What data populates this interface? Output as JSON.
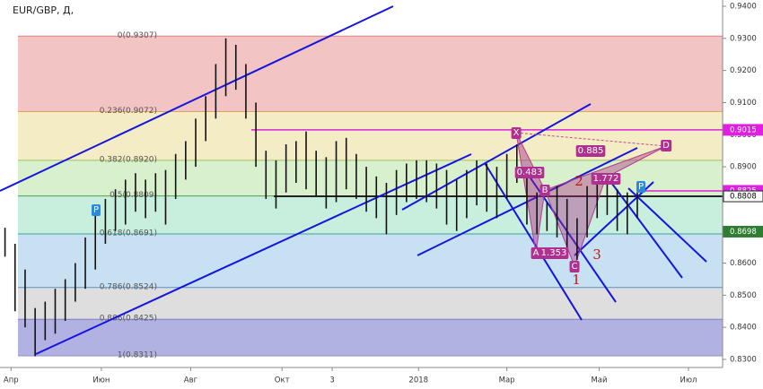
{
  "chart_data": {
    "type": "range-bar",
    "title": "EUR/GBP, Д,",
    "color": "#111111",
    "xlim": [
      0,
      72
    ],
    "xticks": [
      {
        "value": 1.1,
        "label": "Апр"
      },
      {
        "value": 10.1,
        "label": "Июн"
      },
      {
        "value": 19,
        "label": "Авг"
      },
      {
        "value": 28.1,
        "label": "Окт"
      },
      {
        "value": 33.1,
        "label": "3"
      },
      {
        "value": 41.7,
        "label": "2018"
      },
      {
        "value": 50.5,
        "label": "Мар"
      },
      {
        "value": 59.7,
        "label": "Май"
      },
      {
        "value": 68.6,
        "label": "Июл"
      }
    ],
    "ylim": [
      0.83,
      0.94
    ],
    "yticks": [
      {
        "value": 0.83,
        "label": "0.8300"
      },
      {
        "value": 0.84,
        "label": "0.8400"
      },
      {
        "value": 0.85,
        "label": "0.8500"
      },
      {
        "value": 0.86,
        "label": "0.8600"
      },
      {
        "value": 0.87,
        "label": "0.8700"
      },
      {
        "value": 0.88,
        "label": "0.8800"
      },
      {
        "value": 0.89,
        "label": "0.8900"
      },
      {
        "value": 0.9,
        "label": "0.9000"
      },
      {
        "value": 0.91,
        "label": "0.9100"
      },
      {
        "value": 0.92,
        "label": "0.9200"
      },
      {
        "value": 0.93,
        "label": "0.9300"
      },
      {
        "value": 0.94,
        "label": "0.9400"
      }
    ],
    "low": [
      0.862,
      0.845,
      0.84,
      0.831,
      0.836,
      0.838,
      0.842,
      0.848,
      0.852,
      0.858,
      0.866,
      0.87,
      0.872,
      0.876,
      0.874,
      0.876,
      0.872,
      0.88,
      0.886,
      0.89,
      0.898,
      0.905,
      0.912,
      0.914,
      0.905,
      0.89,
      0.88,
      0.877,
      0.882,
      0.885,
      0.883,
      0.881,
      0.877,
      0.879,
      0.883,
      0.88,
      0.876,
      0.874,
      0.869,
      0.875,
      0.879,
      0.88,
      0.879,
      0.877,
      0.872,
      0.87,
      0.874,
      0.878,
      0.876,
      0.874,
      0.88,
      0.885,
      0.872,
      0.869,
      0.87,
      0.868,
      0.862,
      0.861,
      0.868,
      0.874,
      0.875,
      0.87,
      0.869,
      0.874
    ],
    "high": [
      0.871,
      0.866,
      0.858,
      0.846,
      0.848,
      0.852,
      0.855,
      0.86,
      0.868,
      0.876,
      0.88,
      0.883,
      0.886,
      0.888,
      0.886,
      0.888,
      0.889,
      0.894,
      0.898,
      0.905,
      0.912,
      0.922,
      0.93,
      0.928,
      0.922,
      0.91,
      0.895,
      0.892,
      0.897,
      0.898,
      0.901,
      0.895,
      0.893,
      0.898,
      0.899,
      0.894,
      0.89,
      0.887,
      0.885,
      0.889,
      0.891,
      0.892,
      0.892,
      0.891,
      0.889,
      0.886,
      0.889,
      0.892,
      0.891,
      0.89,
      0.894,
      0.897,
      0.89,
      0.882,
      0.879,
      0.884,
      0.88,
      0.874,
      0.884,
      0.886,
      0.887,
      0.883,
      0.882,
      0.882
    ],
    "fib_levels": [
      {
        "value": 0.9307,
        "label": "0(0.9307)",
        "color": "#e08080",
        "fill": "#f2c4c4"
      },
      {
        "value": 0.9072,
        "label": "0.236(0.9072)",
        "color": "#e0a060",
        "fill": "#f4ecc4"
      },
      {
        "value": 0.892,
        "label": "0.382(0.8920)",
        "color": "#a0c060",
        "fill": "#d9f0cc"
      },
      {
        "value": 0.8809,
        "label": "0.5(0.8809)",
        "color": "#50a050",
        "fill": "#c8eedd"
      },
      {
        "value": 0.8691,
        "label": "0.618(0.8691)",
        "color": "#40a0a0",
        "fill": "#c8e1f2"
      },
      {
        "value": 0.8524,
        "label": "0.786(0.8524)",
        "color": "#6090c0",
        "fill": "#dedede"
      },
      {
        "value": 0.8425,
        "label": "0.886(0.8425)",
        "color": "#8080d0",
        "fill": "#b2b2e2"
      },
      {
        "value": 0.8311,
        "label": "1(0.8311)",
        "color": "#9090c0"
      }
    ],
    "price_labels": [
      {
        "value": 0.9015,
        "label": "0.9015",
        "color": "#e020e0"
      },
      {
        "value": 0.8825,
        "label": "0.8825",
        "color": "#e020e0"
      },
      {
        "value": 0.8808,
        "label": "0.8808",
        "color": "#222222"
      },
      {
        "value": 0.8698,
        "label": "0.8698",
        "color": "#2e7d32"
      }
    ],
    "annotations": [
      "X",
      "A",
      "B",
      "C",
      "D",
      "0.483",
      "1.353",
      "1.772",
      "0.885",
      "1",
      "2",
      "3",
      "P",
      "P"
    ]
  }
}
